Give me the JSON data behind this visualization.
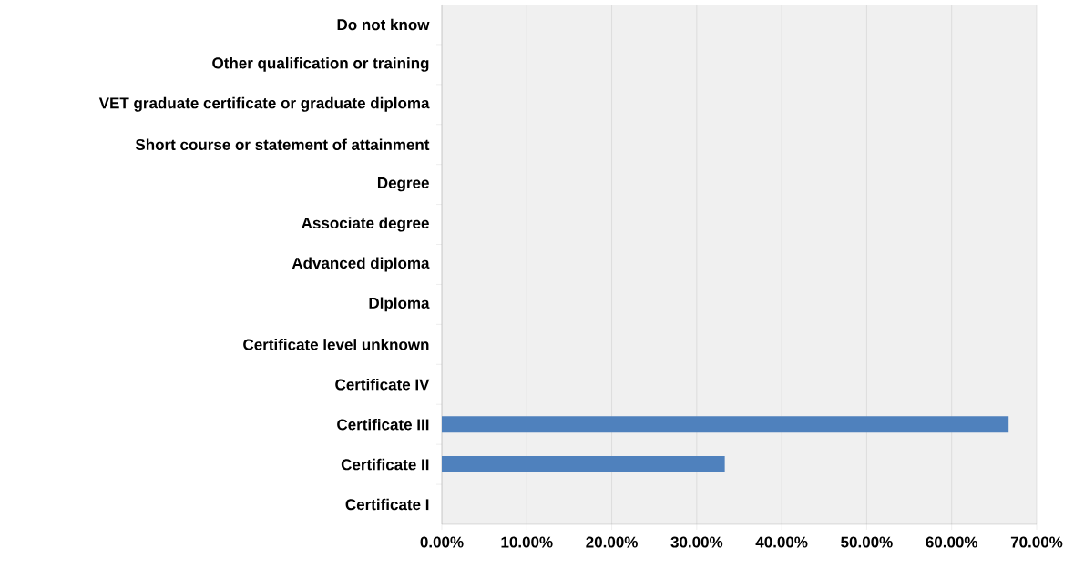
{
  "chart_data": {
    "type": "bar",
    "orientation": "horizontal",
    "categories": [
      "Do not know",
      "Other qualification or training",
      "VET graduate certificate or graduate diploma",
      "Short course or statement of attainment",
      "Degree",
      "Associate degree",
      "Advanced diploma",
      "Dlploma",
      "Certificate level unknown",
      "Certificate IV",
      "Certificate III",
      "Certificate II",
      "Certificate I"
    ],
    "values": [
      0,
      0,
      0,
      0,
      0,
      0,
      0,
      0,
      0,
      0,
      66.7,
      33.3,
      0
    ],
    "color": "#4f81bd",
    "xlim": [
      0,
      70
    ],
    "xticks": [
      {
        "value": 0,
        "label": "0.00%"
      },
      {
        "value": 10,
        "label": "10.00%"
      },
      {
        "value": 20,
        "label": "20.00%"
      },
      {
        "value": 30,
        "label": "30.00%"
      },
      {
        "value": 40,
        "label": "40.00%"
      },
      {
        "value": 50,
        "label": "50.00%"
      },
      {
        "value": 60,
        "label": "60.00%"
      },
      {
        "value": 70,
        "label": "70.00%"
      }
    ],
    "grid": "x"
  }
}
